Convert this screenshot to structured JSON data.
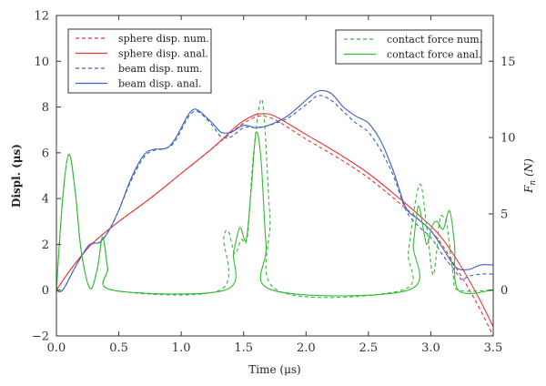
{
  "chart_data": {
    "type": "line",
    "xlabel": "Time (μs)",
    "ylabel": "Displ. (μs)",
    "y2label": "F",
    "y2label_sub": "n",
    "y2label_unit": "(N)",
    "xlim": [
      0,
      3.5
    ],
    "ylim": [
      -2,
      12
    ],
    "y2lim": [
      -3,
      18
    ],
    "xticks": [
      0.0,
      0.5,
      1.0,
      1.5,
      2.0,
      2.5,
      3.0,
      3.5
    ],
    "xtick_labels": [
      "0.0",
      "0.5",
      "1.0",
      "1.5",
      "2.0",
      "2.5",
      "3.0",
      "3.5"
    ],
    "yticks": [
      -2,
      0,
      2,
      4,
      6,
      8,
      10,
      12
    ],
    "ytick_labels": [
      "−2",
      "0",
      "2",
      "4",
      "6",
      "8",
      "10",
      "12"
    ],
    "y2ticks": [
      0,
      5,
      10,
      15
    ],
    "y2tick_labels": [
      "0",
      "5",
      "10",
      "15"
    ],
    "grid": false,
    "legends": [
      {
        "placement": "top-left",
        "entries": [
          "sphere disp. num.",
          "sphere disp. anal.",
          "beam disp. num.",
          "beam disp. anal."
        ]
      },
      {
        "placement": "top-right",
        "entries": [
          "contact force num.",
          "contact force anal."
        ]
      }
    ],
    "series": [
      {
        "name": "sphere disp. num.",
        "axis": "left",
        "color": "#ee3333",
        "dash": true,
        "x": [
          0,
          0.1,
          0.2,
          0.3,
          0.5,
          0.75,
          1.0,
          1.25,
          1.45,
          1.55,
          1.63,
          1.75,
          2.0,
          2.25,
          2.5,
          2.75,
          2.9,
          3.0,
          3.1,
          3.2,
          3.3,
          3.4,
          3.5
        ],
        "y": [
          0,
          0.8,
          1.5,
          2.1,
          3.0,
          4.0,
          5.1,
          6.2,
          7.1,
          7.45,
          7.6,
          7.45,
          6.6,
          5.8,
          4.9,
          3.8,
          3.1,
          2.6,
          1.9,
          1.0,
          0.1,
          -0.9,
          -2.0
        ]
      },
      {
        "name": "sphere disp. anal.",
        "axis": "left",
        "color": "#ee3333",
        "dash": false,
        "x": [
          0,
          0.1,
          0.2,
          0.3,
          0.5,
          0.75,
          1.0,
          1.25,
          1.45,
          1.55,
          1.63,
          1.75,
          2.0,
          2.25,
          2.5,
          2.75,
          2.9,
          3.0,
          3.1,
          3.2,
          3.3,
          3.4,
          3.5
        ],
        "y": [
          0,
          0.8,
          1.5,
          2.1,
          3.0,
          4.0,
          5.1,
          6.2,
          7.2,
          7.55,
          7.7,
          7.6,
          6.8,
          6.0,
          5.1,
          4.0,
          3.3,
          2.8,
          2.2,
          1.4,
          0.5,
          -0.5,
          -1.6
        ]
      },
      {
        "name": "beam disp. num.",
        "axis": "left",
        "color": "#3a62c0",
        "dash": true,
        "x": [
          0,
          0.05,
          0.15,
          0.25,
          0.3,
          0.35,
          0.42,
          0.5,
          0.6,
          0.7,
          0.78,
          0.88,
          0.95,
          1.05,
          1.1,
          1.15,
          1.25,
          1.32,
          1.4,
          1.5,
          1.6,
          1.7,
          1.85,
          2.0,
          2.1,
          2.2,
          2.3,
          2.4,
          2.5,
          2.6,
          2.7,
          2.8,
          2.9,
          3.0,
          3.1,
          3.2,
          3.25,
          3.3,
          3.4,
          3.5
        ],
        "y": [
          0,
          0,
          1.0,
          1.9,
          2.05,
          2.1,
          2.6,
          3.5,
          4.8,
          5.8,
          6.1,
          6.2,
          6.5,
          7.5,
          7.8,
          7.75,
          7.2,
          6.7,
          6.7,
          7.1,
          7.1,
          7.2,
          7.5,
          8.1,
          8.5,
          8.3,
          7.8,
          7.3,
          6.9,
          6.1,
          5.0,
          3.5,
          2.8,
          2.3,
          1.5,
          0.8,
          0.45,
          0.6,
          0.7,
          0.7
        ]
      },
      {
        "name": "beam disp. anal.",
        "axis": "left",
        "color": "#3a62c0",
        "dash": false,
        "x": [
          0,
          0.05,
          0.15,
          0.25,
          0.3,
          0.35,
          0.42,
          0.5,
          0.6,
          0.7,
          0.78,
          0.88,
          0.95,
          1.05,
          1.1,
          1.15,
          1.25,
          1.32,
          1.4,
          1.5,
          1.6,
          1.7,
          1.85,
          2.0,
          2.1,
          2.2,
          2.3,
          2.4,
          2.5,
          2.6,
          2.7,
          2.8,
          2.9,
          3.0,
          3.1,
          3.2,
          3.3,
          3.4,
          3.5
        ],
        "y": [
          0,
          0,
          1.0,
          1.9,
          2.05,
          2.1,
          2.6,
          3.5,
          4.9,
          5.9,
          6.15,
          6.2,
          6.6,
          7.6,
          7.9,
          7.8,
          7.3,
          6.9,
          6.9,
          7.2,
          7.1,
          7.2,
          7.6,
          8.3,
          8.7,
          8.6,
          8.0,
          7.6,
          7.3,
          6.5,
          5.2,
          3.6,
          3.1,
          2.6,
          1.8,
          1.0,
          0.9,
          1.1,
          1.1
        ]
      },
      {
        "name": "contact force num.",
        "axis": "right",
        "color": "#33bb33",
        "dash": true,
        "x": [
          0,
          0.05,
          0.1,
          0.15,
          0.2,
          0.27,
          0.33,
          0.37,
          0.41,
          0.45,
          1.31,
          1.34,
          1.38,
          1.43,
          1.48,
          1.53,
          1.58,
          1.65,
          1.71,
          1.77,
          2.77,
          2.82,
          2.87,
          2.92,
          2.97,
          3.02,
          3.07,
          3.1,
          3.13,
          3.18,
          3.22,
          3.5
        ],
        "y": [
          0,
          6.0,
          8.9,
          6.5,
          2.5,
          0.1,
          1.5,
          3.4,
          1.5,
          0,
          0,
          3.4,
          3.8,
          2.4,
          3.3,
          3.5,
          9.0,
          12.4,
          5.0,
          0,
          0,
          2.5,
          5.5,
          6.9,
          4.0,
          1.0,
          4.5,
          4.8,
          4.2,
          1.0,
          0,
          0
        ]
      },
      {
        "name": "contact force anal.",
        "axis": "right",
        "color": "#33bb33",
        "dash": false,
        "x": [
          0,
          0.05,
          0.1,
          0.15,
          0.2,
          0.27,
          0.33,
          0.37,
          0.41,
          0.45,
          1.35,
          1.42,
          1.47,
          1.52,
          1.56,
          1.6,
          1.64,
          1.68,
          1.73,
          2.82,
          2.86,
          2.9,
          2.94,
          2.97,
          3.01,
          3.05,
          3.1,
          3.15,
          3.19,
          3.22,
          3.5
        ],
        "y": [
          0,
          6.0,
          8.9,
          6.5,
          2.5,
          0.1,
          1.5,
          3.5,
          1.5,
          0,
          0,
          2.5,
          4.1,
          3.3,
          6.5,
          10.3,
          8.5,
          3.0,
          0,
          0,
          3.0,
          5.5,
          4.0,
          3.0,
          4.2,
          4.5,
          4.0,
          5.2,
          3.0,
          0,
          0
        ]
      }
    ]
  }
}
